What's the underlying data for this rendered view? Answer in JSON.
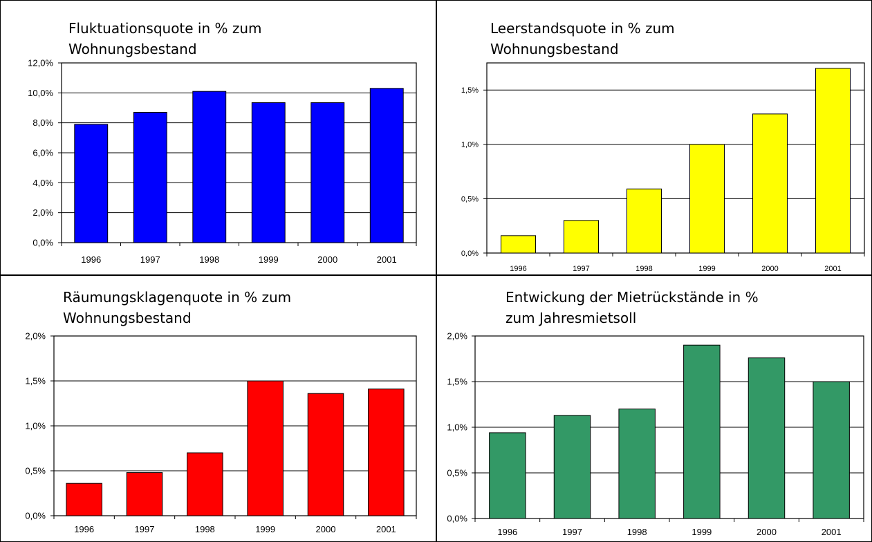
{
  "chart_data": [
    {
      "type": "bar",
      "title_lines": [
        "Fluktuationsquote in % zum",
        "Wohnungsbestand"
      ],
      "categories": [
        "1996",
        "1997",
        "1998",
        "1999",
        "2000",
        "2001"
      ],
      "values": [
        7.9,
        8.7,
        10.1,
        9.35,
        9.35,
        10.3
      ],
      "ylim": [
        0,
        12
      ],
      "yticks": [
        "0,0%",
        "2,0%",
        "4,0%",
        "6,0%",
        "8,0%",
        "10,0%",
        "12,0%"
      ],
      "color": "#0000ff",
      "grid": true
    },
    {
      "type": "bar",
      "title_lines": [
        "Leerstandsquote in % zum",
        "Wohnungsbestand"
      ],
      "categories": [
        "1996",
        "1997",
        "1998",
        "1999",
        "2000",
        "2001"
      ],
      "values": [
        0.16,
        0.3,
        0.59,
        1.0,
        1.28,
        1.7
      ],
      "ylim": [
        0,
        1.75
      ],
      "yticks": [
        "0,0%",
        "0,5%",
        "1,0%",
        "1,5%"
      ],
      "color": "#ffff00",
      "grid": true
    },
    {
      "type": "bar",
      "title_lines": [
        "Räumungsklagenquote in % zum",
        "Wohnungsbestand"
      ],
      "categories": [
        "1996",
        "1997",
        "1998",
        "1999",
        "2000",
        "2001"
      ],
      "values": [
        0.36,
        0.48,
        0.7,
        1.5,
        1.36,
        1.41
      ],
      "ylim": [
        0,
        2
      ],
      "yticks": [
        "0,0%",
        "0,5%",
        "1,0%",
        "1,5%",
        "2,0%"
      ],
      "color": "#ff0000",
      "grid": true
    },
    {
      "type": "bar",
      "title_lines": [
        "Entwickung der Mietrückstände in %",
        "zum Jahresmietsoll"
      ],
      "categories": [
        "1996",
        "1997",
        "1998",
        "1999",
        "2000",
        "2001"
      ],
      "values": [
        0.94,
        1.13,
        1.2,
        1.9,
        1.76,
        1.5
      ],
      "ylim": [
        0,
        2
      ],
      "yticks": [
        "0,0%",
        "0,5%",
        "1,0%",
        "1,5%",
        "2,0%"
      ],
      "color": "#339966",
      "grid": true
    }
  ]
}
